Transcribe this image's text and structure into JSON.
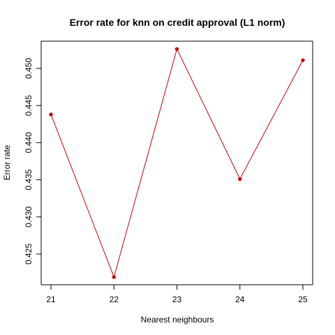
{
  "chart_data": {
    "type": "line",
    "title": "Error rate for knn on credit approval (L1 norm)",
    "xlabel": "Nearest neighbours",
    "ylabel": "Error rate",
    "x": [
      21,
      22,
      23,
      24,
      25
    ],
    "series": [
      {
        "values": [
          0.4438,
          0.4219,
          0.4526,
          0.4351,
          0.4511
        ]
      }
    ],
    "xlim": [
      21,
      25
    ],
    "ylim": [
      0.42,
      0.455
    ],
    "xticks": [
      21,
      22,
      23,
      24,
      25
    ],
    "yticks": [
      0.425,
      0.43,
      0.435,
      0.44,
      0.445,
      0.45
    ],
    "xtick_labels": [
      "21",
      "22",
      "23",
      "24",
      "25"
    ],
    "ytick_labels": [
      "0.425",
      "0.430",
      "0.435",
      "0.440",
      "0.445",
      "0.450"
    ],
    "line_color": "#cc0000",
    "point_marker": "filled-circle",
    "grid": false,
    "legend": "none"
  }
}
